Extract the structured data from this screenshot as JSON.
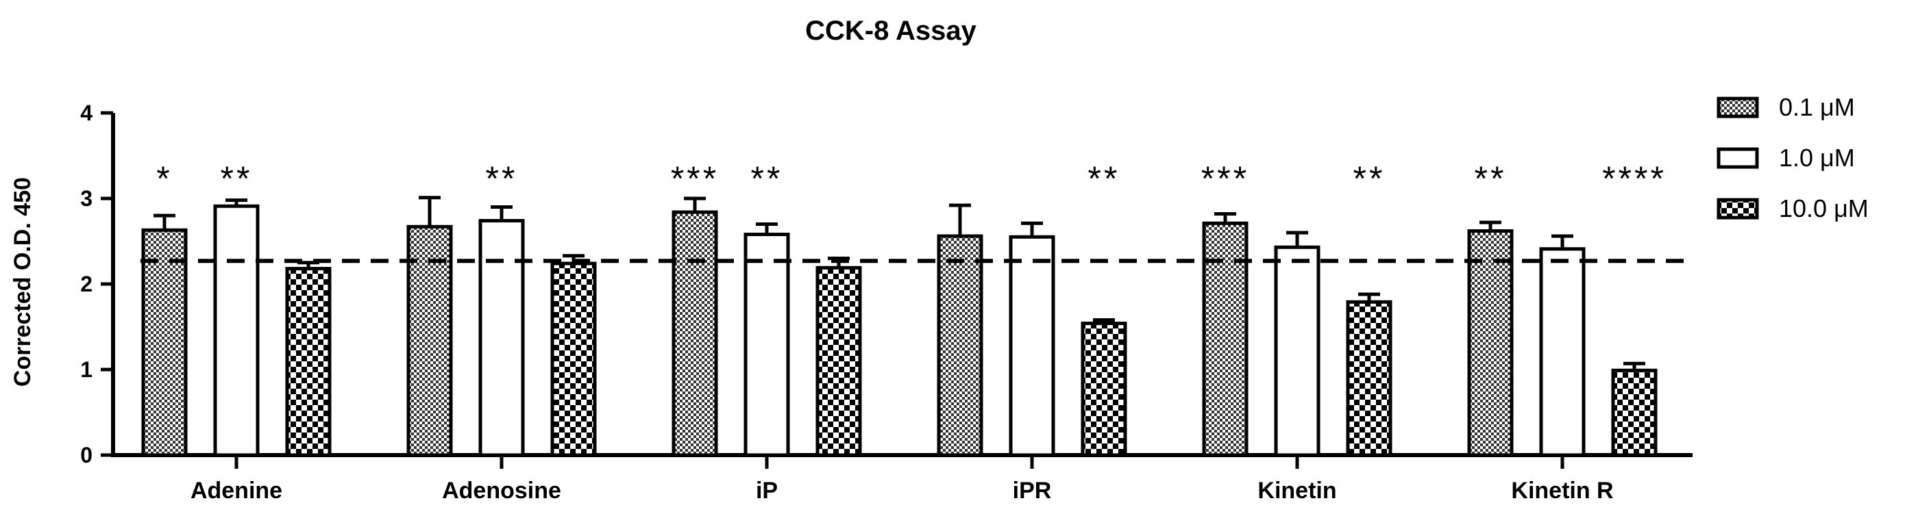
{
  "chart_data": {
    "type": "bar",
    "title": "CCK-8 Assay",
    "xlabel": "",
    "ylabel": "Corrected O.D. 450",
    "ylim": [
      0,
      4
    ],
    "yticks": [
      "0",
      "1",
      "2",
      "3",
      "4"
    ],
    "categories": [
      "Adenine",
      "Adenosine",
      "iP",
      "iPR",
      "Kinetin",
      "Kinetin R"
    ],
    "series": [
      {
        "name": "0.1 μM",
        "pattern": "fine-checker",
        "values": [
          2.63,
          2.67,
          2.84,
          2.56,
          2.71,
          2.62
        ],
        "errors": [
          0.17,
          0.34,
          0.16,
          0.36,
          0.11,
          0.1
        ],
        "significance": [
          "*",
          "",
          "***",
          "",
          "***",
          "**"
        ]
      },
      {
        "name": "1.0 μM",
        "pattern": "open",
        "values": [
          2.91,
          2.74,
          2.58,
          2.55,
          2.43,
          2.41
        ],
        "errors": [
          0.07,
          0.16,
          0.12,
          0.16,
          0.17,
          0.15
        ],
        "significance": [
          "**",
          "**",
          "**",
          "",
          "",
          ""
        ]
      },
      {
        "name": "10.0 μM",
        "pattern": "coarse-checker",
        "values": [
          2.18,
          2.24,
          2.19,
          1.54,
          1.79,
          0.99
        ],
        "errors": [
          0.07,
          0.09,
          0.11,
          0.04,
          0.09,
          0.08
        ],
        "significance": [
          "",
          "",
          "",
          "**",
          "**",
          "****"
        ]
      }
    ],
    "reference_line": 2.27,
    "legend_position": "right"
  }
}
